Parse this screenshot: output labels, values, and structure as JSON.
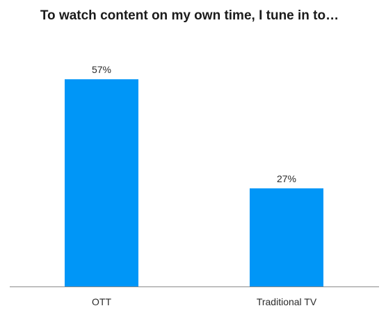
{
  "chart_data": {
    "type": "bar",
    "title": "To watch content on my own time, I tune in to…",
    "categories": [
      "OTT",
      "Traditional TV"
    ],
    "values": [
      57,
      27
    ],
    "value_labels": [
      "57%",
      "27%"
    ],
    "xlabel": "",
    "ylabel": "",
    "ylim": [
      0,
      57
    ],
    "grid": false,
    "legend": "none",
    "bar_color": "#0096f7",
    "axis_color": "#8a8a8a"
  }
}
